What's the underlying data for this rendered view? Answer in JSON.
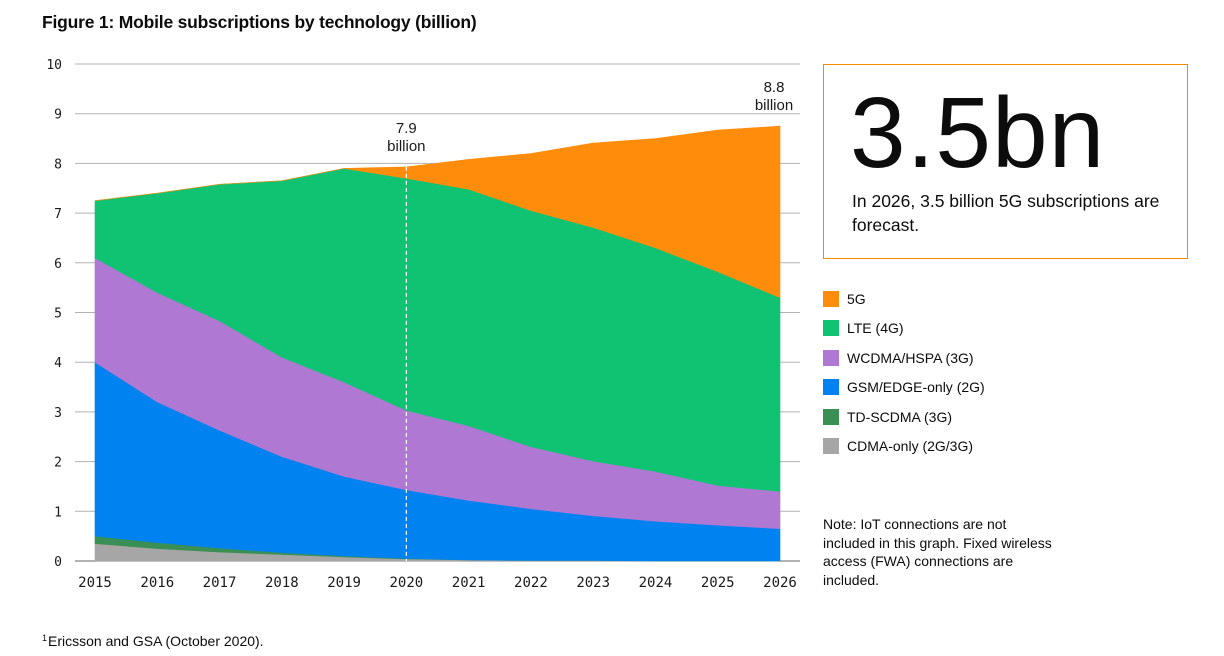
{
  "figure": {
    "title": "Figure 1: Mobile subscriptions by technology (billion)",
    "footnote_marker": "1",
    "footnote": "Ericsson and GSA (October 2020)."
  },
  "highlight": {
    "value": "3.5bn",
    "text": "In 2026, 3.5 billion 5G subscriptions are forecast."
  },
  "note": "Note: IoT connections are not included in this graph. Fixed wireless access (FWA) connections are included.",
  "chart_data": {
    "type": "area",
    "stacked": true,
    "title": "Mobile subscriptions by technology (billion)",
    "x": [
      "2015",
      "2016",
      "2017",
      "2018",
      "2019",
      "2020",
      "2021",
      "2022",
      "2023",
      "2024",
      "2025",
      "2026"
    ],
    "ylim": [
      0,
      10
    ],
    "yticks": [
      0,
      1,
      2,
      3,
      4,
      5,
      6,
      7,
      8,
      9,
      10
    ],
    "grid": true,
    "legend_placement": "right",
    "series": [
      {
        "name": "CDMA-only (2G/3G)",
        "color": "#a6a6a6",
        "values": [
          0.35,
          0.25,
          0.18,
          0.13,
          0.08,
          0.04,
          0.02,
          0.01,
          0.01,
          0.0,
          0.0,
          0.0
        ]
      },
      {
        "name": "TD-SCDMA (3G)",
        "color": "#3a8f55",
        "values": [
          0.15,
          0.12,
          0.08,
          0.04,
          0.02,
          0.01,
          0.0,
          0.0,
          0.0,
          0.0,
          0.0,
          0.0
        ]
      },
      {
        "name": "GSM/EDGE-only (2G)",
        "color": "#0082f0",
        "values": [
          3.5,
          2.83,
          2.37,
          1.93,
          1.6,
          1.38,
          1.2,
          1.04,
          0.9,
          0.8,
          0.72,
          0.65
        ]
      },
      {
        "name": "WCDMA/HSPA (3G)",
        "color": "#af78d2",
        "values": [
          2.1,
          2.2,
          2.2,
          2.0,
          1.9,
          1.6,
          1.5,
          1.25,
          1.1,
          1.0,
          0.8,
          0.75
        ]
      },
      {
        "name": "LTE (4G)",
        "color": "#0fc373",
        "values": [
          1.15,
          2.0,
          2.75,
          3.55,
          4.3,
          4.67,
          4.76,
          4.75,
          4.7,
          4.5,
          4.3,
          3.9
        ]
      },
      {
        "name": "5G",
        "color": "#ff8c0a",
        "values": [
          0.0,
          0.0,
          0.0,
          0.0,
          0.0,
          0.23,
          0.6,
          1.15,
          1.7,
          2.2,
          2.85,
          3.45
        ]
      }
    ],
    "legend_order": [
      "5G",
      "LTE (4G)",
      "WCDMA/HSPA (3G)",
      "GSM/EDGE-only (2G)",
      "TD-SCDMA (3G)",
      "CDMA-only (2G/3G)"
    ],
    "annotations": [
      {
        "x": "2020",
        "line1": "7.9",
        "line2": "billion",
        "dashed_line": true
      },
      {
        "x": "2026",
        "line1": "8.8",
        "line2": "billion",
        "dashed_line": false
      }
    ]
  }
}
